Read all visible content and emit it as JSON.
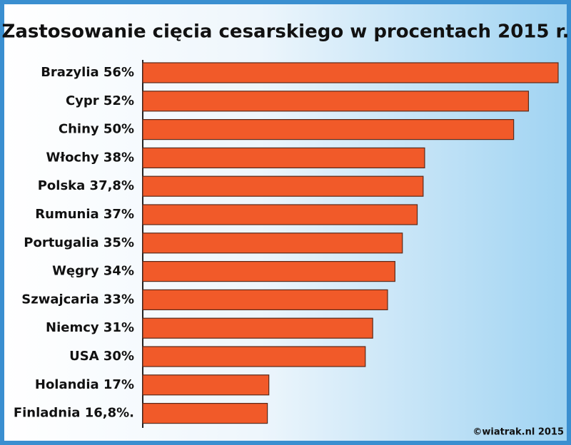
{
  "chart_data": {
    "type": "bar",
    "orientation": "horizontal",
    "title": "Zastosowanie cięcia cesarskiego w procentach 2015 r.",
    "categories": [
      "Brazylia 56%",
      "Cypr 52%",
      "Chiny 50%",
      "Włochy 38%",
      "Polska 37,8%",
      "Rumunia 37%",
      "Portugalia 35%",
      "Węgry 34%",
      "Szwajcaria 33%",
      "Niemcy 31%",
      "USA 30%",
      "Holandia 17%",
      "Finladnia 16,8%."
    ],
    "values": [
      56,
      52,
      50,
      38,
      37.8,
      37,
      35,
      34,
      33,
      31,
      30,
      17,
      16.8
    ],
    "color": "#f15a29",
    "xlim": [
      0,
      56
    ],
    "footer": "©wiatrak.nl 2015"
  }
}
